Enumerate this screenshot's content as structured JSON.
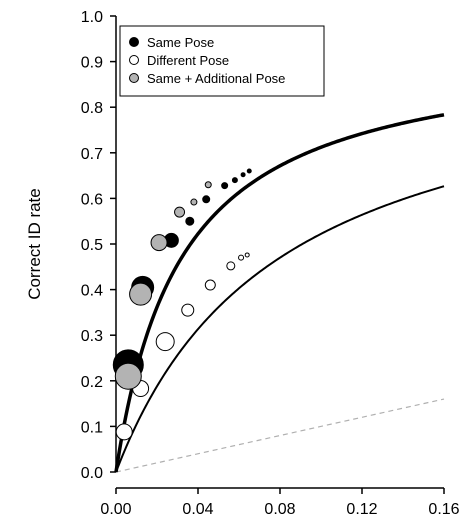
{
  "chart_data": {
    "type": "scatter",
    "ylabel": "Correct ID rate",
    "xlim": [
      0,
      0.16
    ],
    "ylim": [
      0,
      1.0
    ],
    "x_ticks": [
      "0.00",
      "0.04",
      "0.08",
      "0.12",
      "0.16"
    ],
    "y_ticks": [
      "0.0",
      "0.1",
      "0.2",
      "0.3",
      "0.4",
      "0.5",
      "0.6",
      "0.7",
      "0.8",
      "0.9",
      "1.0"
    ],
    "legend_position": "top-left",
    "series": [
      {
        "name": "Same Pose",
        "fill": "#000000",
        "points": [
          {
            "x": 0.006,
            "y": 0.235,
            "r": 15
          },
          {
            "x": 0.013,
            "y": 0.405,
            "r": 11
          },
          {
            "x": 0.027,
            "y": 0.508,
            "r": 7
          },
          {
            "x": 0.036,
            "y": 0.55,
            "r": 4
          },
          {
            "x": 0.044,
            "y": 0.598,
            "r": 3.5
          },
          {
            "x": 0.053,
            "y": 0.628,
            "r": 3
          },
          {
            "x": 0.058,
            "y": 0.64,
            "r": 2.5
          },
          {
            "x": 0.062,
            "y": 0.652,
            "r": 2
          },
          {
            "x": 0.065,
            "y": 0.66,
            "r": 2
          }
        ]
      },
      {
        "name": "Different Pose",
        "fill": "#ffffff",
        "points": [
          {
            "x": 0.004,
            "y": 0.088,
            "r": 8
          },
          {
            "x": 0.012,
            "y": 0.183,
            "r": 8
          },
          {
            "x": 0.024,
            "y": 0.286,
            "r": 9
          },
          {
            "x": 0.035,
            "y": 0.355,
            "r": 6
          },
          {
            "x": 0.046,
            "y": 0.41,
            "r": 5
          },
          {
            "x": 0.056,
            "y": 0.452,
            "r": 4
          },
          {
            "x": 0.061,
            "y": 0.47,
            "r": 2.5
          },
          {
            "x": 0.064,
            "y": 0.476,
            "r": 2
          }
        ]
      },
      {
        "name": "Same + Additional Pose",
        "fill": "#b3b3b3",
        "points": [
          {
            "x": 0.006,
            "y": 0.21,
            "r": 13
          },
          {
            "x": 0.012,
            "y": 0.39,
            "r": 11
          },
          {
            "x": 0.021,
            "y": 0.503,
            "r": 8
          },
          {
            "x": 0.031,
            "y": 0.57,
            "r": 5
          },
          {
            "x": 0.038,
            "y": 0.592,
            "r": 3
          },
          {
            "x": 0.045,
            "y": 0.63,
            "r": 3
          }
        ]
      }
    ],
    "curves": [
      {
        "name": "",
        "color": "#000000",
        "width": 3.5,
        "a": 0.94,
        "b": 0.032
      },
      {
        "name": "",
        "color": "#000000",
        "width": 2,
        "a": 0.94,
        "b": 0.08
      }
    ],
    "reference_line": {
      "name": "",
      "color": "#b0b0b0",
      "from": [
        0,
        0
      ],
      "to": [
        0.16,
        0.16
      ]
    }
  }
}
